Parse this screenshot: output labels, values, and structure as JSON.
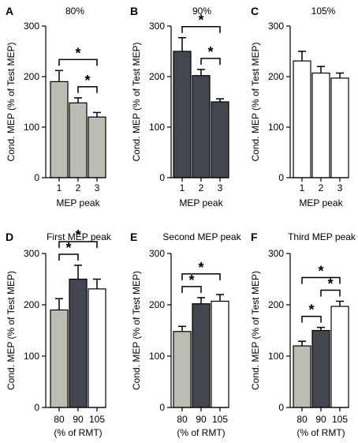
{
  "chart_data": [
    {
      "panel": "A",
      "title": "80%",
      "type": "bar",
      "categories": [
        "1",
        "2",
        "3"
      ],
      "values": [
        190,
        148,
        120
      ],
      "errors": [
        22,
        10,
        9
      ],
      "colors": [
        "#bcbcb2",
        "#bcbcb2",
        "#bcbcb2"
      ],
      "ylim": [
        0,
        300
      ],
      "yticks": [
        0,
        100,
        200,
        300
      ],
      "ylabel": "Cond. MEP (% of Test MEP)",
      "xlabel": "MEP peak",
      "significance": [
        {
          "from": 0,
          "to": 2,
          "label": "*"
        },
        {
          "from": 1,
          "to": 2,
          "label": "*"
        }
      ]
    },
    {
      "panel": "B",
      "title": "90%",
      "type": "bar",
      "categories": [
        "1",
        "2",
        "3"
      ],
      "values": [
        250,
        202,
        150
      ],
      "errors": [
        27,
        12,
        6
      ],
      "colors": [
        "#43454f",
        "#43454f",
        "#43454f"
      ],
      "ylim": [
        0,
        300
      ],
      "yticks": [
        0,
        100,
        200,
        300
      ],
      "ylabel": "Cond. MEP (% of Test MEP)",
      "xlabel": "MEP peak",
      "significance": [
        {
          "from": 0,
          "to": 2,
          "label": "*"
        },
        {
          "from": 1,
          "to": 2,
          "label": "*"
        }
      ]
    },
    {
      "panel": "C",
      "title": "105%",
      "type": "bar",
      "categories": [
        "1",
        "2",
        "3"
      ],
      "values": [
        231,
        207,
        197
      ],
      "errors": [
        19,
        13,
        10
      ],
      "colors": [
        "#ffffff",
        "#ffffff",
        "#ffffff"
      ],
      "ylim": [
        0,
        300
      ],
      "yticks": [
        0,
        100,
        200,
        300
      ],
      "ylabel": "Cond. MEP (% of Test MEP)",
      "xlabel": "MEP peak",
      "significance": []
    },
    {
      "panel": "D",
      "title": "First MEP peak",
      "type": "bar",
      "categories": [
        "80",
        "90",
        "105"
      ],
      "values": [
        190,
        250,
        231
      ],
      "errors": [
        22,
        27,
        19
      ],
      "colors": [
        "#bcbcb2",
        "#43454f",
        "#ffffff"
      ],
      "ylim": [
        0,
        300
      ],
      "yticks": [
        0,
        100,
        200,
        300
      ],
      "ylabel": "Cond. MEP (% of Test MEP)",
      "xlabel": "(% of RMT)",
      "significance": [
        {
          "from": 0,
          "to": 2,
          "label": "*"
        },
        {
          "from": 0,
          "to": 1,
          "label": "*"
        }
      ]
    },
    {
      "panel": "E",
      "title": "Second MEP peak",
      "type": "bar",
      "categories": [
        "80",
        "90",
        "105"
      ],
      "values": [
        148,
        202,
        207
      ],
      "errors": [
        10,
        12,
        13
      ],
      "colors": [
        "#bcbcb2",
        "#43454f",
        "#ffffff"
      ],
      "ylim": [
        0,
        300
      ],
      "yticks": [
        0,
        100,
        200,
        300
      ],
      "ylabel": "Cond. MEP (% of Test MEP)",
      "xlabel": "(% of RMT)",
      "significance": [
        {
          "from": 0,
          "to": 2,
          "label": "*"
        },
        {
          "from": 0,
          "to": 1,
          "label": "*"
        }
      ]
    },
    {
      "panel": "F",
      "title": "Third MEP peak",
      "type": "bar",
      "categories": [
        "80",
        "90",
        "105"
      ],
      "values": [
        120,
        150,
        197
      ],
      "errors": [
        9,
        6,
        10
      ],
      "colors": [
        "#bcbcb2",
        "#43454f",
        "#ffffff"
      ],
      "ylim": [
        0,
        300
      ],
      "yticks": [
        0,
        100,
        200,
        300
      ],
      "ylabel": "Cond. MEP (% of Test MEP)",
      "xlabel": "(% of RMT)",
      "significance": [
        {
          "from": 0,
          "to": 2,
          "label": "*"
        },
        {
          "from": 0,
          "to": 1,
          "label": "*"
        },
        {
          "from": 1,
          "to": 2,
          "label": "*"
        }
      ]
    }
  ]
}
